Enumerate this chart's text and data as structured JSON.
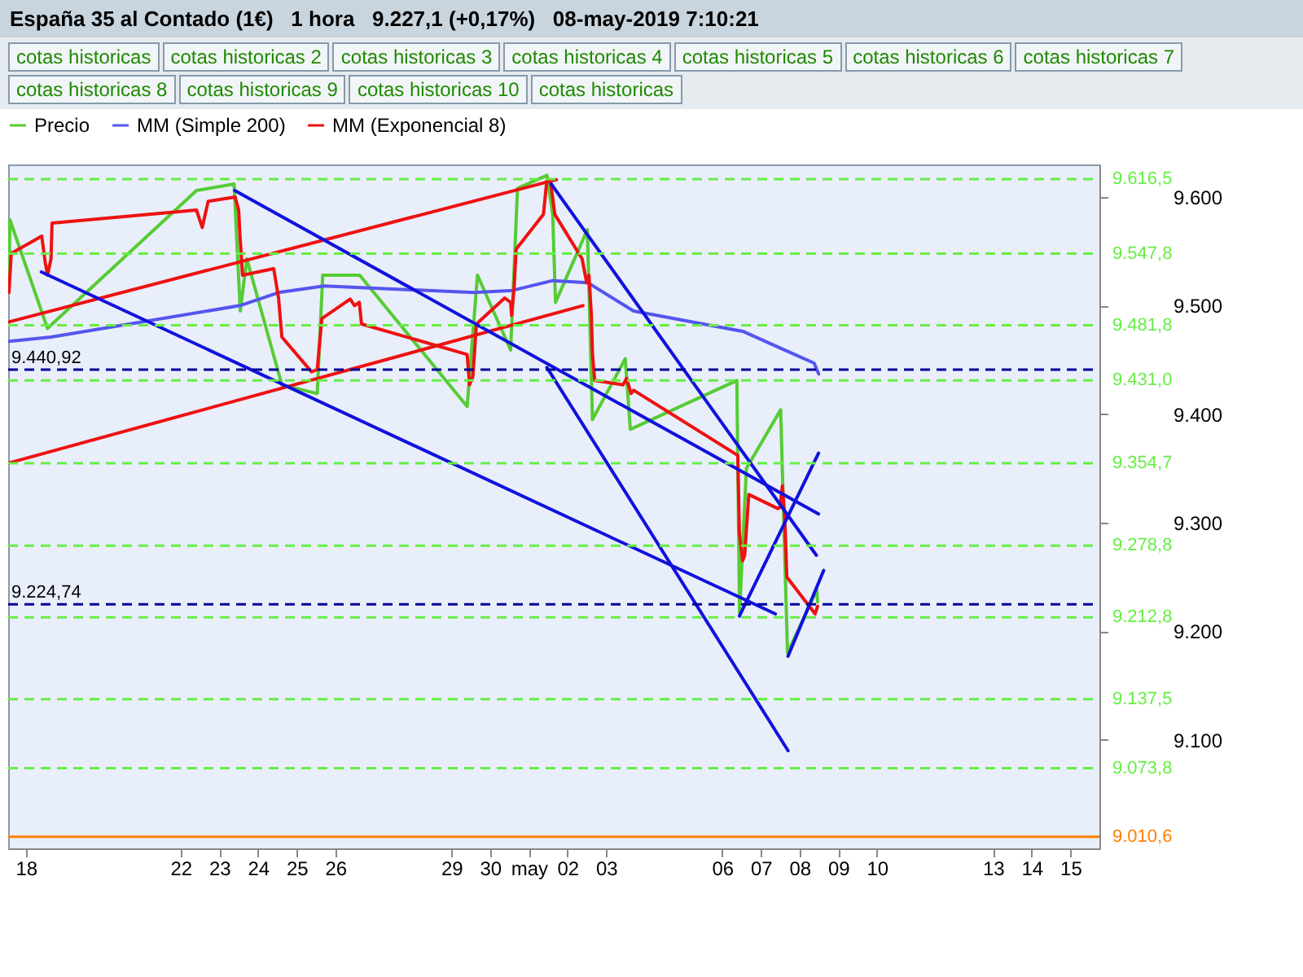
{
  "chart_data": {
    "type": "line",
    "title": "España 35 al Contado (1€)   1 hora   9.227,1 (+0,17%)   08-may-2019 7:10:21",
    "annotations": [
      "cotas historicas",
      "cotas historicas 2",
      "cotas historicas 3",
      "cotas historicas 4",
      "cotas historicas 5",
      "cotas historicas 6",
      "cotas historicas 7",
      "cotas historicas 8",
      "cotas historicas 9",
      "cotas historicas 10",
      "cotas historicas"
    ],
    "legend": "top",
    "line_style": "solid",
    "marker": "none",
    "xlim": [
      "2019-04-17T13:00",
      "2019-05-15T18:00"
    ],
    "xticks": [
      {
        "value": "2019-04-18",
        "label": "18"
      },
      {
        "value": "2019-04-22",
        "label": "22"
      },
      {
        "value": "2019-04-23",
        "label": "23"
      },
      {
        "value": "2019-04-24",
        "label": "24"
      },
      {
        "value": "2019-04-25",
        "label": "25"
      },
      {
        "value": "2019-04-26",
        "label": "26"
      },
      {
        "value": "2019-04-29",
        "label": "29"
      },
      {
        "value": "2019-04-30",
        "label": "30"
      },
      {
        "value": "2019-05-01",
        "label": "may"
      },
      {
        "value": "2019-05-02",
        "label": "02"
      },
      {
        "value": "2019-05-03",
        "label": "03"
      },
      {
        "value": "2019-05-06",
        "label": "06"
      },
      {
        "value": "2019-05-07",
        "label": "07"
      },
      {
        "value": "2019-05-08",
        "label": "08"
      },
      {
        "value": "2019-05-09",
        "label": "09"
      },
      {
        "value": "2019-05-10",
        "label": "10"
      },
      {
        "value": "2019-05-13",
        "label": "13"
      },
      {
        "value": "2019-05-14",
        "label": "14"
      },
      {
        "value": "2019-05-15",
        "label": "15"
      }
    ],
    "ylim": [
      9000,
      9630
    ],
    "yticks": [
      {
        "value": 9100,
        "label": "9.100"
      },
      {
        "value": 9200,
        "label": "9.200"
      },
      {
        "value": 9300,
        "label": "9.300"
      },
      {
        "value": 9400,
        "label": "9.400"
      },
      {
        "value": 9500,
        "label": "9.500"
      },
      {
        "value": 9600,
        "label": "9.600"
      }
    ],
    "series": [
      {
        "name": "Precio",
        "color": "#55cc33",
        "x": [
          "2019-04-17T13:30",
          "2019-04-17T14:05",
          "2019-04-18T13:25",
          "2019-04-22T09:50",
          "2019-04-23T09:10",
          "2019-04-23T13:00",
          "2019-04-23T17:05",
          "2019-04-24T14:50",
          "2019-04-25T12:45",
          "2019-04-25T16:10",
          "2019-04-26T15:05",
          "2019-04-29T09:45",
          "2019-04-29T16:10",
          "2019-04-30T12:45",
          "2019-04-30T17:00",
          "2019-05-01T11:15",
          "2019-05-01T14:50",
          "2019-05-01T16:35",
          "2019-05-02T12:20",
          "2019-05-02T15:30",
          "2019-05-03T11:50",
          "2019-05-03T15:00",
          "2019-05-06T09:05",
          "2019-05-06T10:45",
          "2019-05-06T15:00",
          "2019-05-07T12:15",
          "2019-05-07T16:30",
          "2019-05-08T10:40",
          "2019-05-08T11:10"
        ],
        "values": [
          9512,
          9579,
          9479,
          9606,
          9612,
          9495,
          9543,
          9427,
          9419,
          9528,
          9528,
          9407,
          9528,
          9459,
          9608,
          9620,
          9584,
          9503,
          9570,
          9395,
          9451,
          9386,
          9431,
          9217,
          9350,
          9404,
          9180,
          9238,
          9227
        ]
      },
      {
        "name": "MM (Simple 200)",
        "color": "#5555ee",
        "x": [
          "2019-04-17T13:30",
          "2019-04-18T15:35",
          "2019-04-23T12:50",
          "2019-04-24T12:45",
          "2019-04-25T17:00",
          "2019-04-29T14:00",
          "2019-04-30T14:00",
          "2019-05-01T14:50",
          "2019-05-02T12:45",
          "2019-05-03T17:00",
          "2019-05-06T13:20",
          "2019-05-07T11:50",
          "2019-05-08T09:00",
          "2019-05-08T11:50"
        ],
        "values": [
          9467,
          9471,
          9500,
          9512,
          9518,
          9512,
          9514,
          9523,
          9521,
          9495,
          9476,
          9461,
          9447,
          9437
        ]
      },
      {
        "name": "MM (Exponencial 8)",
        "color": "#ee1111",
        "x": [
          "2019-04-17T13:30",
          "2019-04-17T14:55",
          "2019-04-18T09:50",
          "2019-04-18T12:00",
          "2019-04-18T13:25",
          "2019-04-18T15:35",
          "2019-04-18T16:15",
          "2019-04-22T09:50",
          "2019-04-22T13:25",
          "2019-04-22T17:05",
          "2019-04-23T09:50",
          "2019-04-23T12:00",
          "2019-04-23T12:50",
          "2019-04-23T14:25",
          "2019-04-24T09:45",
          "2019-04-24T12:45",
          "2019-04-24T14:50",
          "2019-04-25T09:10",
          "2019-04-25T12:45",
          "2019-04-25T15:35",
          "2019-04-26T09:10",
          "2019-04-26T11:55",
          "2019-04-26T14:50",
          "2019-04-26T16:15",
          "2019-04-29T09:45",
          "2019-04-29T11:15",
          "2019-04-29T13:20",
          "2019-04-29T15:30",
          "2019-04-30T09:05",
          "2019-04-30T12:45",
          "2019-04-30T13:20",
          "2019-04-30T14:50",
          "2019-04-30T16:10",
          "2019-05-01T09:05",
          "2019-05-01T11:15",
          "2019-05-01T13:20",
          "2019-05-01T16:10",
          "2019-05-02T09:05",
          "2019-05-02T11:55",
          "2019-05-02T13:20",
          "2019-05-02T14:50",
          "2019-05-02T15:30",
          "2019-05-02T16:55",
          "2019-05-03T10:30",
          "2019-05-03T12:40",
          "2019-05-03T15:25",
          "2019-05-03T17:05",
          "2019-05-06T09:40",
          "2019-05-06T10:40",
          "2019-05-06T12:40",
          "2019-05-06T13:55",
          "2019-05-06T16:30",
          "2019-05-07T10:30",
          "2019-05-07T11:50",
          "2019-05-07T13:20",
          "2019-05-07T14:45",
          "2019-05-07T16:05",
          "2019-05-08T09:40",
          "2019-05-08T11:10"
        ],
        "values": [
          9512,
          9548,
          9564,
          9540,
          9528,
          9543,
          9576,
          9588,
          9572,
          9596,
          9600,
          9588,
          9564,
          9528,
          9534,
          9507,
          9471,
          9439,
          9441,
          9488,
          9506,
          9500,
          9503,
          9483,
          9455,
          9427,
          9435,
          9483,
          9507,
          9503,
          9491,
          9515,
          9552,
          9584,
          9616,
          9616,
          9584,
          9543,
          9521,
          9528,
          9491,
          9455,
          9431,
          9427,
          9433,
          9419,
          9422,
          9362,
          9290,
          9265,
          9270,
          9326,
          9313,
          9314,
          9334,
          9307,
          9250,
          9216,
          9223
        ]
      },
      {
        "color": "#ee1111",
        "x": [
          "2019-04-17T13:30",
          "2019-05-01T17:10"
        ],
        "values": [
          9485,
          9616
        ]
      },
      {
        "color": "#ee1111",
        "x": [
          "2019-04-17T13:30",
          "2019-05-02T09:40"
        ],
        "values": [
          9355,
          9500
        ]
      },
      {
        "color": "#1111dd",
        "x": [
          "2019-04-23T09:35",
          "2019-05-08T11:45"
        ],
        "values": [
          9606,
          9308
        ]
      },
      {
        "color": "#1111dd",
        "x": [
          "2019-04-18T09:35",
          "2019-05-07T09:00"
        ],
        "values": [
          9531,
          9216
        ]
      },
      {
        "color": "#1111dd",
        "x": [
          "2019-05-01T13:55",
          "2019-05-08T10:25"
        ],
        "values": [
          9612,
          9270
        ]
      },
      {
        "color": "#1111dd",
        "x": [
          "2019-05-01T11:15",
          "2019-05-07T16:50"
        ],
        "values": [
          9443,
          9090
        ]
      },
      {
        "color": "#1111dd",
        "x": [
          "2019-05-06T10:40",
          "2019-05-08T11:45"
        ],
        "values": [
          9214,
          9364
        ]
      },
      {
        "color": "#1111dd",
        "x": [
          "2019-05-07T16:50",
          "2019-05-08T14:55"
        ],
        "values": [
          9177,
          9256
        ]
      }
    ],
    "ref_lines": [
      {
        "axis": "y",
        "value": 9616.5,
        "label": "9.616,5",
        "color": "#66ee44",
        "line_style": "dashed"
      },
      {
        "axis": "y",
        "value": 9547.8,
        "label": "9.547,8",
        "color": "#66ee44",
        "line_style": "dashed"
      },
      {
        "axis": "y",
        "value": 9481.8,
        "label": "9.481,8",
        "color": "#66ee44",
        "line_style": "dashed"
      },
      {
        "axis": "y",
        "value": 9431.0,
        "label": "9.431,0",
        "color": "#66ee44",
        "line_style": "dashed"
      },
      {
        "axis": "y",
        "value": 9440.92,
        "label": "9.440,92",
        "color": "#000099",
        "line_style": "dashed"
      },
      {
        "axis": "y",
        "value": 9354.7,
        "label": "9.354,7",
        "color": "#66ee44",
        "line_style": "dashed"
      },
      {
        "axis": "y",
        "value": 9278.8,
        "label": "9.278,8",
        "color": "#66ee44",
        "line_style": "dashed"
      },
      {
        "axis": "y",
        "value": 9212.8,
        "label": "9.212,8",
        "color": "#66ee44",
        "line_style": "dashed"
      },
      {
        "axis": "y",
        "value": 9224.74,
        "label": "9.224,74",
        "color": "#000099",
        "line_style": "dashed"
      },
      {
        "axis": "y",
        "value": 9137.5,
        "label": "9.137,5",
        "color": "#66ee44",
        "line_style": "dashed"
      },
      {
        "axis": "y",
        "value": 9073.8,
        "label": "9.073,8",
        "color": "#66ee44",
        "line_style": "dashed"
      },
      {
        "axis": "y",
        "value": 9010.6,
        "label": "9.010,6",
        "color": "#ff8000",
        "line_style": "solid"
      }
    ]
  }
}
